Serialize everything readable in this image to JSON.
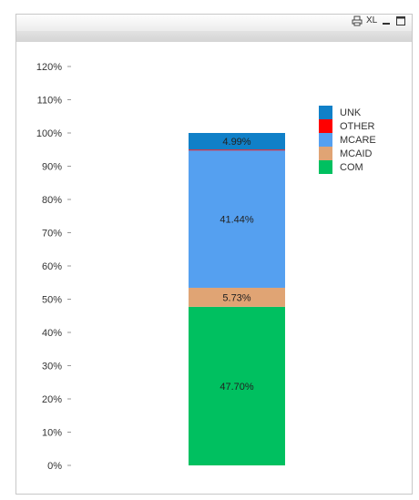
{
  "toolbar": {
    "print_icon": "printer-icon",
    "xl_label": "XL",
    "minimize_icon": "minimize-icon",
    "maximize_icon": "maximize-icon"
  },
  "chart_data": {
    "type": "bar",
    "stacked": true,
    "title": "",
    "xlabel": "",
    "ylabel": "",
    "ylim": [
      0,
      1.2
    ],
    "y_ticks": [
      "0%",
      "10%",
      "20%",
      "30%",
      "40%",
      "50%",
      "60%",
      "70%",
      "80%",
      "90%",
      "100%",
      "110%",
      "120%"
    ],
    "grid": false,
    "legend_position": "top-right",
    "series": [
      {
        "name": "COM",
        "value": 0.477,
        "label": "47.70%",
        "color": "#00c060"
      },
      {
        "name": "MCAID",
        "value": 0.0573,
        "label": "5.73%",
        "color": "#e0a474"
      },
      {
        "name": "MCARE",
        "value": 0.4144,
        "label": "41.44%",
        "color": "#55a0f0"
      },
      {
        "name": "OTHER",
        "value": 0.0014,
        "label": "",
        "color": "#ff0000"
      },
      {
        "name": "UNK",
        "value": 0.0499,
        "label": "4.99%",
        "color": "#1080c8"
      }
    ]
  }
}
